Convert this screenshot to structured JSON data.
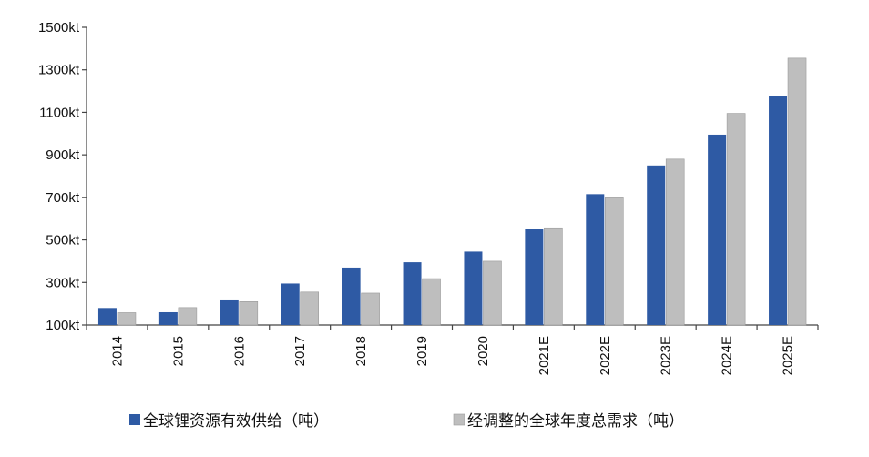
{
  "chart_data": {
    "type": "bar",
    "categories": [
      "2014",
      "2015",
      "2016",
      "2017",
      "2018",
      "2019",
      "2020",
      "2021E",
      "2022E",
      "2023E",
      "2024E",
      "2025E"
    ],
    "series": [
      {
        "name": "全球锂资源有效供给（吨）",
        "color": "#2e5aa4",
        "values": [
          180,
          160,
          220,
          295,
          370,
          395,
          445,
          550,
          715,
          850,
          995,
          1175
        ]
      },
      {
        "name": "经调整的全球年度总需求（吨）",
        "color": "#bebebe",
        "values": [
          158,
          182,
          210,
          255,
          250,
          318,
          400,
          557,
          702,
          880,
          1095,
          1355
        ]
      }
    ],
    "y_ticks": [
      "100kt",
      "300kt",
      "500kt",
      "700kt",
      "900kt",
      "1100kt",
      "1300kt",
      "1500kt"
    ],
    "ylim": [
      100,
      1500
    ],
    "y_tick_step": 200,
    "legend_position": "bottom",
    "grid": false
  }
}
